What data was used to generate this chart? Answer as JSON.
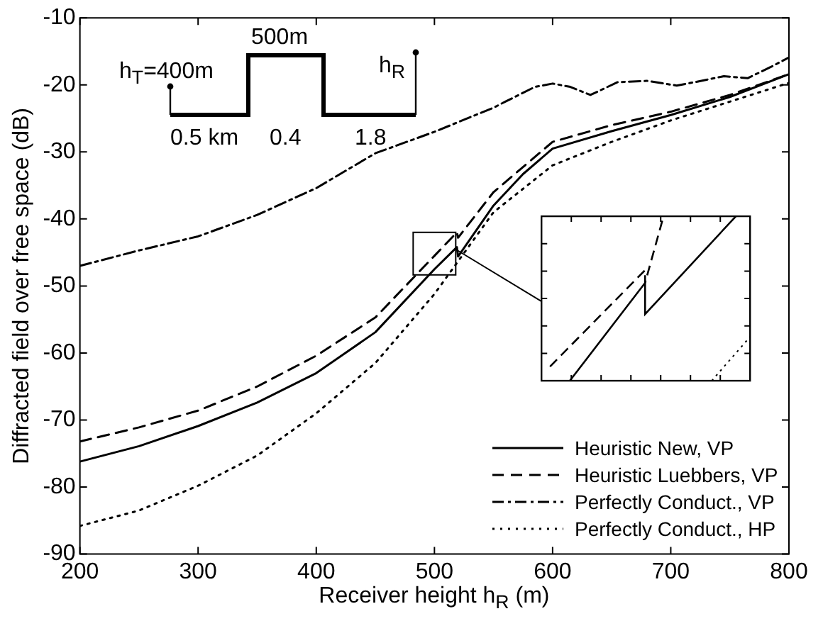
{
  "chart_data": {
    "type": "line",
    "xlabel": "Receiver height h$_{R}$ (m)",
    "ylabel": "Diffracted field over free space (dB)",
    "xlim": [
      200,
      800
    ],
    "xticks": [
      200,
      300,
      400,
      500,
      600,
      700,
      800
    ],
    "ylim": [
      -90,
      -10
    ],
    "yticks": [
      -90,
      -80,
      -70,
      -60,
      -50,
      -40,
      -30,
      -20,
      -10
    ],
    "grid": false,
    "legend": "bottom right",
    "marker": "none",
    "annotations": [
      "h$_{T}$=400m",
      "500m",
      "h$_{R}$",
      "0.5 km",
      "0.4",
      "1.8"
    ],
    "series": [
      {
        "name": "Heuristic New, VP",
        "color": "#000000",
        "line_style": "solid",
        "x": [
          200,
          250,
          300,
          350,
          400,
          450,
          500,
          519,
          520,
          550,
          575,
          600,
          650,
          700,
          750,
          800
        ],
        "values": [
          -76.2,
          -73.9,
          -70.9,
          -67.4,
          -63,
          -56.9,
          -47.5,
          -44.2,
          -45.6,
          -38,
          -33.3,
          -29.5,
          -26.9,
          -24.5,
          -21.8,
          -18.4
        ]
      },
      {
        "name": "Heuristic Luebbers, VP",
        "color": "#000000",
        "line_style": "dashed",
        "x": [
          200,
          250,
          300,
          350,
          400,
          450,
          500,
          519,
          520,
          550,
          600,
          650,
          700,
          750,
          800
        ],
        "values": [
          -73.2,
          -71.1,
          -68.6,
          -65,
          -60.4,
          -54.7,
          -45.5,
          -42,
          -42.8,
          -36,
          -28.5,
          -26,
          -24,
          -21.5,
          -18.4
        ]
      },
      {
        "name": "Perfectly Conduct., VP",
        "color": "#000000",
        "line_style": "dashdot",
        "x": [
          200,
          250,
          300,
          350,
          400,
          450,
          500,
          550,
          560,
          585,
          600,
          615,
          632,
          655,
          680,
          705,
          720,
          745,
          765,
          785,
          800
        ],
        "values": [
          -47,
          -44.7,
          -42.6,
          -39.4,
          -35.4,
          -30.2,
          -27,
          -23.4,
          -22.5,
          -20.3,
          -19.8,
          -20.3,
          -21.5,
          -19.6,
          -19.4,
          -20.1,
          -19.6,
          -18.7,
          -19,
          -17.3,
          -15.9
        ]
      },
      {
        "name": "Perfectly Conduct., HP",
        "color": "#000000",
        "line_style": "dotted",
        "x": [
          200,
          250,
          300,
          350,
          400,
          450,
          500,
          550,
          600,
          650,
          700,
          750,
          800
        ],
        "values": [
          -85.8,
          -83.5,
          -79.8,
          -75.3,
          -69,
          -61.5,
          -51.2,
          -39,
          -32,
          -28.5,
          -25.3,
          -22.5,
          -19.7
        ]
      }
    ]
  }
}
